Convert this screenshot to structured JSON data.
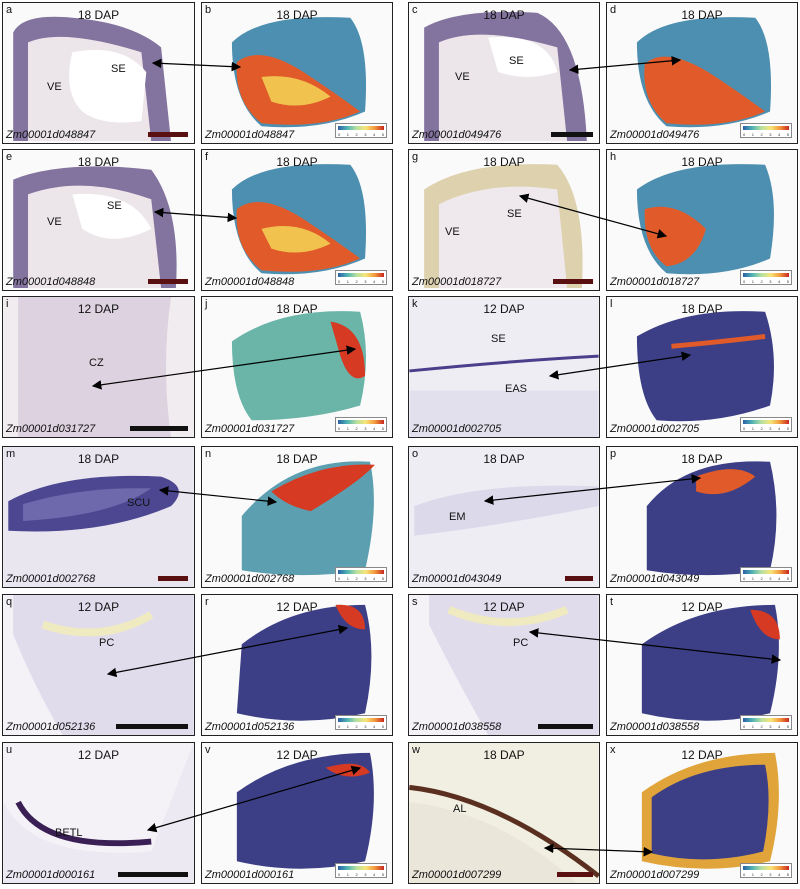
{
  "panels": [
    {
      "id": "a",
      "dap": "18 DAP",
      "gene": "Zm00001d048847",
      "labels": [
        "VE",
        "SE"
      ]
    },
    {
      "id": "b",
      "dap": "18 DAP",
      "gene": "Zm00001d048847",
      "labels": []
    },
    {
      "id": "c",
      "dap": "18 DAP",
      "gene": "Zm00001d049476",
      "labels": [
        "VE",
        "SE"
      ]
    },
    {
      "id": "d",
      "dap": "18 DAP",
      "gene": "Zm00001d049476",
      "labels": []
    },
    {
      "id": "e",
      "dap": "18 DAP",
      "gene": "Zm00001d048848",
      "labels": [
        "VE",
        "SE"
      ]
    },
    {
      "id": "f",
      "dap": "18 DAP",
      "gene": "Zm00001d048848",
      "labels": []
    },
    {
      "id": "g",
      "dap": "18 DAP",
      "gene": "Zm00001d018727",
      "labels": [
        "VE",
        "SE"
      ]
    },
    {
      "id": "h",
      "dap": "18 DAP",
      "gene": "Zm00001d018727",
      "labels": []
    },
    {
      "id": "i",
      "dap": "12 DAP",
      "gene": "Zm00001d031727",
      "labels": [
        "CZ"
      ]
    },
    {
      "id": "j",
      "dap": "18 DAP",
      "gene": "Zm00001d031727",
      "labels": []
    },
    {
      "id": "k",
      "dap": "12 DAP",
      "gene": "Zm00001d002705",
      "labels": [
        "SE",
        "EAS"
      ]
    },
    {
      "id": "l",
      "dap": "18 DAP",
      "gene": "Zm00001d002705",
      "labels": []
    },
    {
      "id": "m",
      "dap": "18 DAP",
      "gene": "Zm00001d002768",
      "labels": [
        "SCU"
      ]
    },
    {
      "id": "n",
      "dap": "18 DAP",
      "gene": "Zm00001d002768",
      "labels": []
    },
    {
      "id": "o",
      "dap": "18 DAP",
      "gene": "Zm00001d043049",
      "labels": [
        "EM"
      ]
    },
    {
      "id": "p",
      "dap": "18 DAP",
      "gene": "Zm00001d043049",
      "labels": []
    },
    {
      "id": "q",
      "dap": "12 DAP",
      "gene": "Zm00001d052136",
      "labels": [
        "PC"
      ]
    },
    {
      "id": "r",
      "dap": "12 DAP",
      "gene": "Zm00001d052136",
      "labels": []
    },
    {
      "id": "s",
      "dap": "12 DAP",
      "gene": "Zm00001d038558",
      "labels": [
        "PC"
      ]
    },
    {
      "id": "t",
      "dap": "12 DAP",
      "gene": "Zm00001d038558",
      "labels": []
    },
    {
      "id": "u",
      "dap": "12 DAP",
      "gene": "Zm00001d000161",
      "labels": [
        "BETL"
      ]
    },
    {
      "id": "v",
      "dap": "12 DAP",
      "gene": "Zm00001d000161",
      "labels": []
    },
    {
      "id": "w",
      "dap": "18 DAP",
      "gene": "Zm00001d007299",
      "labels": [
        "AL"
      ]
    },
    {
      "id": "x",
      "dap": "12 DAP",
      "gene": "Zm00001d007299",
      "labels": []
    }
  ],
  "colorbar_ticks": [
    "0",
    "1",
    "2",
    "3",
    "4",
    "5"
  ],
  "colors": {
    "stain": "#5b3f86",
    "tissue": "#ece6ea",
    "heat_high": "#c8281f",
    "heat_low": "#2b5fa8",
    "scale_bar": "#111111"
  }
}
